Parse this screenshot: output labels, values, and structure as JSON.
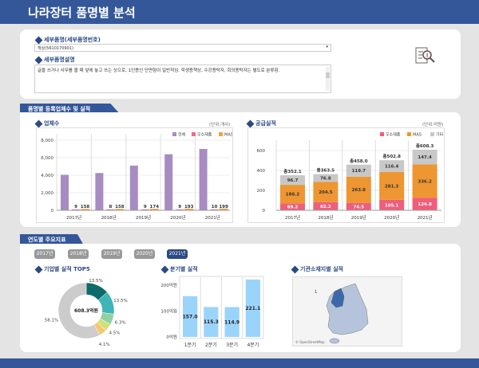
{
  "header": {
    "title": "나라장터 품명별 분석"
  },
  "detail": {
    "item_label": "세부품명(세부품명번호)",
    "item_value": "책상(5610170901)",
    "desc_label": "세부품명설명",
    "desc_value": "글을 쓰거나 사무를 볼 때 앞에 놓고 쓰는 상으로, 1인용인 단면형이 일반적임. 학생용책상, 수강용탁자, 회의용탁자는 별도로 분류함."
  },
  "section1": {
    "tab": "품명별 등록업체수 및 실적"
  },
  "section2": {
    "tab": "연도별 주요지표"
  },
  "chart_data": [
    {
      "type": "bar",
      "title": "업체수",
      "unit": "(단위:개사)",
      "categories": [
        "2017년",
        "2018년",
        "2019년",
        "2020년",
        "2021년"
      ],
      "ylim": [
        0,
        8000
      ],
      "yticks": [
        "8,000",
        "6,000",
        "4,000",
        "2,000",
        "0"
      ],
      "ytick_values": [
        8000,
        6000,
        4000,
        2000,
        0
      ],
      "series": [
        {
          "name": "전체",
          "color": "#a68cc0",
          "values": [
            4050,
            4250,
            5100,
            6400,
            7000
          ]
        },
        {
          "name": "우수제품",
          "color": "#f06b85",
          "values": [
            9,
            8,
            9,
            9,
            10
          ]
        },
        {
          "name": "MAS",
          "color": "#f0a245",
          "values": [
            158,
            158,
            174,
            193,
            199
          ]
        }
      ]
    },
    {
      "type": "bar",
      "stacked": true,
      "title": "공급실적",
      "unit": "(단위:억원)",
      "categories": [
        "2017년",
        "2018년",
        "2019년",
        "2020년",
        "2021년"
      ],
      "ylim": [
        0,
        600
      ],
      "yticks": [
        "600",
        "400",
        "200",
        "0"
      ],
      "ytick_values": [
        600,
        400,
        200,
        0
      ],
      "totals": [
        "총352.1",
        "총363.5",
        "총458.0",
        "총502.8",
        "총608.3"
      ],
      "series": [
        {
          "name": "우수제품",
          "color": "#ef5e7c",
          "values": [
            69.2,
            82.2,
            74.5,
            105.1,
            124.8
          ],
          "labels": [
            "69.2",
            "82.2",
            "74.5",
            "105.1",
            "124.8"
          ]
        },
        {
          "name": "MAS",
          "color": "#ee9631",
          "values": [
            186.2,
            204.5,
            263.8,
            281.3,
            336.2
          ],
          "labels": [
            "186.2",
            "204.5",
            "263.8",
            "281.3",
            "336.2"
          ]
        },
        {
          "name": "기타",
          "color": "#c8c8c8",
          "values": [
            96.7,
            76.8,
            119.7,
            116.4,
            147.4
          ],
          "labels": [
            "96.7",
            "76.8",
            "119.7",
            "116.4",
            "147.4"
          ]
        }
      ]
    },
    {
      "type": "pie",
      "title": "기업별 실적 TOP5",
      "center_label": "608.3억원",
      "values": [
        13.5,
        13.5,
        6.3,
        4.5,
        4.1,
        58.1
      ],
      "labels": [
        "13.5%",
        "13.5%",
        "6.3%",
        "4.5%",
        "4.1%",
        "58.1%"
      ],
      "colors": [
        "#0d6b6b",
        "#3fb5b5",
        "#8fd1a2",
        "#cfe07a",
        "#f9c76a",
        "#cccccc"
      ]
    },
    {
      "type": "bar",
      "title": "분기별 실적",
      "categories": [
        "1분기",
        "2분기",
        "3분기",
        "4분기"
      ],
      "values": [
        157.0,
        115.3,
        114.9,
        221.1
      ],
      "labels": [
        "157.0",
        "115.3",
        "114.9",
        "221.1"
      ],
      "ylim": [
        0,
        230
      ],
      "yticks": [
        "200억원",
        "100억원",
        "0억원"
      ],
      "ytick_values": [
        200,
        100,
        0
      ],
      "color": "#9bd4fb"
    }
  ],
  "years": [
    "2017년",
    "2018년",
    "2019년",
    "2020년",
    "2021년"
  ],
  "map": {
    "title": "기관소재지별 실적",
    "attribution": "© OpenStreetMap",
    "marker": "1"
  }
}
